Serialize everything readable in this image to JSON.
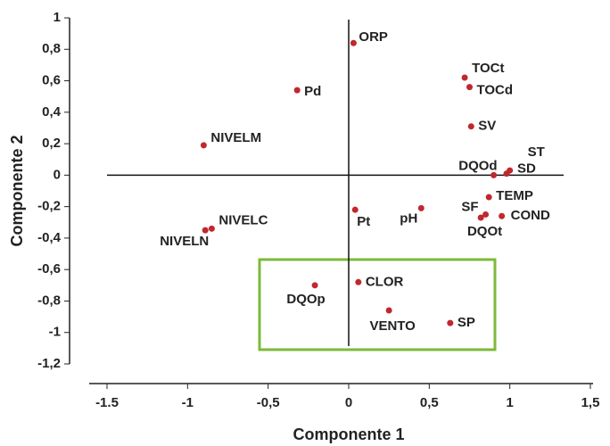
{
  "chart_data": {
    "type": "scatter",
    "x_label": "Componente 1",
    "y_label": "Componente 2",
    "point_labels": [
      "ORP",
      "Pd",
      "NIVELM",
      "TOCt",
      "TOCd",
      "SV",
      "ST",
      "SD",
      "DQOd",
      "TEMP",
      "COND",
      "SF",
      "DQOt",
      "pH",
      "Pt",
      "NIVELC",
      "NIVELN",
      "DQOp",
      "CLOR",
      "VENTO",
      "SP"
    ],
    "x": [
      0.03,
      -0.32,
      -0.9,
      0.72,
      0.75,
      0.76,
      1.0,
      0.98,
      0.9,
      0.87,
      0.95,
      0.85,
      0.82,
      0.45,
      0.04,
      -0.85,
      -0.89,
      -0.21,
      0.06,
      0.25,
      0.63
    ],
    "values": [
      0.84,
      0.54,
      0.19,
      0.62,
      0.56,
      0.31,
      0.03,
      0.01,
      0.0,
      -0.14,
      -0.26,
      -0.25,
      -0.27,
      -0.21,
      -0.22,
      -0.34,
      -0.35,
      -0.7,
      -0.68,
      -0.86,
      -0.94
    ],
    "color": "#c0282d",
    "xlim": [
      -1.5,
      1.5
    ],
    "xticks": [
      -1.5,
      -1,
      {
        "value": -0.5,
        "label": "-0,5"
      },
      0,
      {
        "value": 0.5,
        "label": "0,5"
      },
      1,
      {
        "value": 1.5,
        "label": "1,5"
      }
    ],
    "ylim": [
      -1.2,
      1
    ],
    "yticks": [
      1,
      {
        "value": 0.8,
        "label": "0,8"
      },
      {
        "value": 0.6,
        "label": "0,6"
      },
      {
        "value": 0.4,
        "label": "0,4"
      },
      {
        "value": 0.2,
        "label": "0,2"
      },
      0,
      {
        "value": -0.2,
        "label": "-0,2"
      },
      {
        "value": -0.4,
        "label": "-0,4"
      },
      {
        "value": -0.6,
        "label": "-0,6"
      },
      {
        "value": -0.8,
        "label": "-0,8"
      },
      -1,
      {
        "value": -1.2,
        "label": "-1,2"
      }
    ]
  }
}
